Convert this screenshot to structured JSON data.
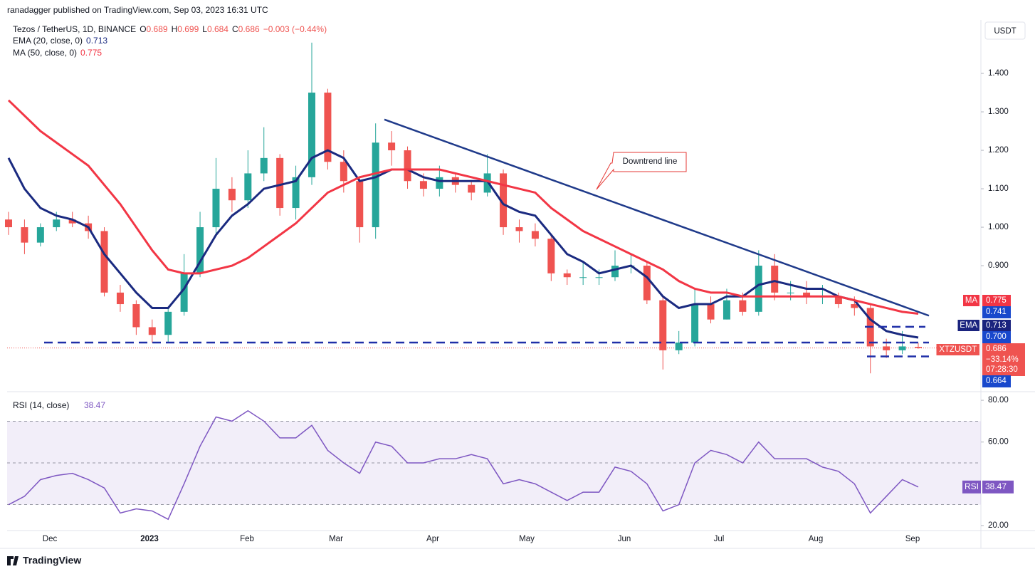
{
  "header": {
    "publisher": "ranadagger published on TradingView.com, Sep 03, 2023 16:31 UTC",
    "currency": "USDT",
    "brand": "TradingView"
  },
  "chart_data": {
    "type": "candlestick",
    "title": "Tezos / TetherUS, 1D, BINANCE",
    "ohlc": [
      {
        "key": "O",
        "value": "0.689"
      },
      {
        "key": "H",
        "value": "0.699"
      },
      {
        "key": "L",
        "value": "0.684"
      },
      {
        "key": "C",
        "value": "0.686"
      }
    ],
    "change": "−0.003 (−0.44%)",
    "up_color": "#26a69a",
    "down_color": "#ef5350",
    "open": [
      1.02,
      1.0,
      0.96,
      1.0,
      1.02,
      1.01,
      0.99,
      0.83,
      0.8,
      0.74,
      0.72,
      0.78,
      0.88,
      1.0,
      1.1,
      1.07,
      1.14,
      1.18,
      1.05,
      1.13,
      1.35,
      1.17,
      1.12,
      1.0,
      1.22,
      1.2,
      1.12,
      1.1,
      1.13,
      1.11,
      1.09,
      1.14,
      1.0,
      0.99,
      0.97,
      0.88,
      0.87,
      0.87,
      0.87,
      0.9,
      0.9,
      0.81,
      0.68,
      0.7,
      0.8,
      0.76,
      0.81,
      0.78,
      0.9,
      0.83,
      0.83,
      0.82,
      0.82,
      0.8,
      0.79,
      0.69,
      0.68,
      0.689
    ],
    "high": [
      1.04,
      1.02,
      1.01,
      1.04,
      1.04,
      1.03,
      1.0,
      0.85,
      0.81,
      0.76,
      0.79,
      0.93,
      1.04,
      1.18,
      1.13,
      1.2,
      1.26,
      1.19,
      1.16,
      1.48,
      1.36,
      1.2,
      1.13,
      1.27,
      1.25,
      1.21,
      1.14,
      1.16,
      1.14,
      1.12,
      1.19,
      1.15,
      1.02,
      1.01,
      0.98,
      0.89,
      0.91,
      0.89,
      0.94,
      0.93,
      0.91,
      0.82,
      0.73,
      0.84,
      0.82,
      0.84,
      0.83,
      0.94,
      0.93,
      0.86,
      0.86,
      0.85,
      0.83,
      0.82,
      0.8,
      0.71,
      0.73,
      0.699
    ],
    "low": [
      0.98,
      0.93,
      0.95,
      0.99,
      1.0,
      0.97,
      0.82,
      0.78,
      0.72,
      0.7,
      0.7,
      0.77,
      0.87,
      0.98,
      1.04,
      1.05,
      1.12,
      1.03,
      1.02,
      1.11,
      1.15,
      1.09,
      0.96,
      0.97,
      1.16,
      1.1,
      1.08,
      1.08,
      1.09,
      1.07,
      1.08,
      0.98,
      0.96,
      0.95,
      0.86,
      0.85,
      0.85,
      0.85,
      0.86,
      0.88,
      0.8,
      0.63,
      0.67,
      0.69,
      0.75,
      0.76,
      0.77,
      0.77,
      0.81,
      0.81,
      0.8,
      0.8,
      0.79,
      0.77,
      0.62,
      0.66,
      0.67,
      0.684
    ],
    "close": [
      1.0,
      0.96,
      1.0,
      1.02,
      1.01,
      0.99,
      0.83,
      0.8,
      0.74,
      0.72,
      0.78,
      0.88,
      1.0,
      1.1,
      1.07,
      1.14,
      1.18,
      1.05,
      1.13,
      1.35,
      1.17,
      1.12,
      1.0,
      1.22,
      1.2,
      1.12,
      1.1,
      1.13,
      1.11,
      1.09,
      1.14,
      1.0,
      0.99,
      0.97,
      0.88,
      0.87,
      0.87,
      0.87,
      0.9,
      0.9,
      0.81,
      0.68,
      0.7,
      0.8,
      0.76,
      0.81,
      0.78,
      0.9,
      0.83,
      0.83,
      0.82,
      0.82,
      0.8,
      0.79,
      0.69,
      0.68,
      0.69,
      0.686
    ],
    "series": [
      {
        "name": "EMA (20, close, 0)",
        "color": "#1a2a80",
        "values": [
          1.18,
          1.1,
          1.05,
          1.03,
          1.02,
          1.0,
          0.93,
          0.88,
          0.83,
          0.79,
          0.79,
          0.84,
          0.91,
          0.98,
          1.03,
          1.06,
          1.1,
          1.11,
          1.12,
          1.18,
          1.2,
          1.18,
          1.12,
          1.13,
          1.15,
          1.15,
          1.13,
          1.12,
          1.12,
          1.12,
          1.12,
          1.06,
          1.04,
          1.03,
          0.98,
          0.93,
          0.91,
          0.88,
          0.89,
          0.9,
          0.87,
          0.82,
          0.79,
          0.8,
          0.8,
          0.82,
          0.82,
          0.85,
          0.86,
          0.85,
          0.84,
          0.84,
          0.82,
          0.81,
          0.76,
          0.73,
          0.72,
          0.713
        ]
      },
      {
        "name": "MA (50, close, 0)",
        "color": "#f23645",
        "values": [
          1.33,
          1.29,
          1.25,
          1.22,
          1.19,
          1.16,
          1.11,
          1.06,
          1.0,
          0.94,
          0.89,
          0.88,
          0.88,
          0.89,
          0.9,
          0.92,
          0.95,
          0.98,
          1.01,
          1.05,
          1.09,
          1.11,
          1.13,
          1.14,
          1.15,
          1.15,
          1.15,
          1.15,
          1.14,
          1.13,
          1.12,
          1.11,
          1.1,
          1.09,
          1.05,
          1.02,
          0.99,
          0.97,
          0.95,
          0.93,
          0.91,
          0.89,
          0.86,
          0.84,
          0.83,
          0.83,
          0.82,
          0.82,
          0.82,
          0.82,
          0.82,
          0.82,
          0.82,
          0.81,
          0.8,
          0.79,
          0.78,
          0.775
        ]
      }
    ],
    "ylim": [
      0.576,
      1.539
    ],
    "yticks": [
      {
        "value": 1.4,
        "label": "1.400"
      },
      {
        "value": 1.3,
        "label": "1.300"
      },
      {
        "value": 1.2,
        "label": "1.200"
      },
      {
        "value": 1.1,
        "label": "1.100"
      },
      {
        "value": 1.0,
        "label": "1.000"
      },
      {
        "value": 0.9,
        "label": "0.900"
      }
    ],
    "xticks": [
      "Dec",
      "2023",
      "Feb",
      "Mar",
      "Apr",
      "May",
      "Jun",
      "Jul",
      "Aug",
      "Sep"
    ],
    "levels": [
      0.7,
      0.741,
      0.664
    ],
    "trendline": {
      "values": [
        1.28,
        0.77
      ],
      "color": "#1f3a8a",
      "label": "Downtrend line"
    },
    "axis_labels": [
      {
        "tag": "MA",
        "value": 0.775,
        "label": "0.775",
        "color": "#f23645"
      },
      {
        "value": 0.741,
        "label": "0.741",
        "color": "#1848cc"
      },
      {
        "tag": "EMA",
        "value": 0.713,
        "label": "0.713",
        "color": "#1a237e"
      },
      {
        "value": 0.7,
        "label": "0.700",
        "color": "#1848cc"
      },
      {
        "tag": "XTZUSDT",
        "value": 0.686,
        "label": "0.686",
        "extra": [
          "−33.14%",
          "07:28:30"
        ],
        "color": "#ef5350"
      },
      {
        "value": 0.664,
        "label": "0.664",
        "color": "#1848cc"
      }
    ],
    "rsi": {
      "name": "RSI (14, close)",
      "tag": "RSI",
      "color": "#7e57c2",
      "values": [
        30,
        34,
        42,
        44,
        45,
        42,
        38,
        26,
        28,
        27,
        23,
        40,
        58,
        72,
        70,
        75,
        70,
        62,
        62,
        68,
        56,
        50,
        45,
        60,
        58,
        50,
        50,
        52,
        52,
        54,
        52,
        40,
        42,
        40,
        36,
        32,
        36,
        36,
        48,
        46,
        40,
        27,
        30,
        50,
        56,
        54,
        50,
        60,
        52,
        52,
        52,
        48,
        46,
        40,
        26,
        34,
        42,
        38.47
      ],
      "ylim": [
        17.6,
        83.1
      ],
      "yticks": [
        {
          "value": 80,
          "label": "80.00"
        },
        {
          "value": 60,
          "label": "60.00"
        },
        {
          "value": 20,
          "label": "20.00"
        }
      ],
      "bands": [
        70,
        50,
        30
      ]
    }
  }
}
